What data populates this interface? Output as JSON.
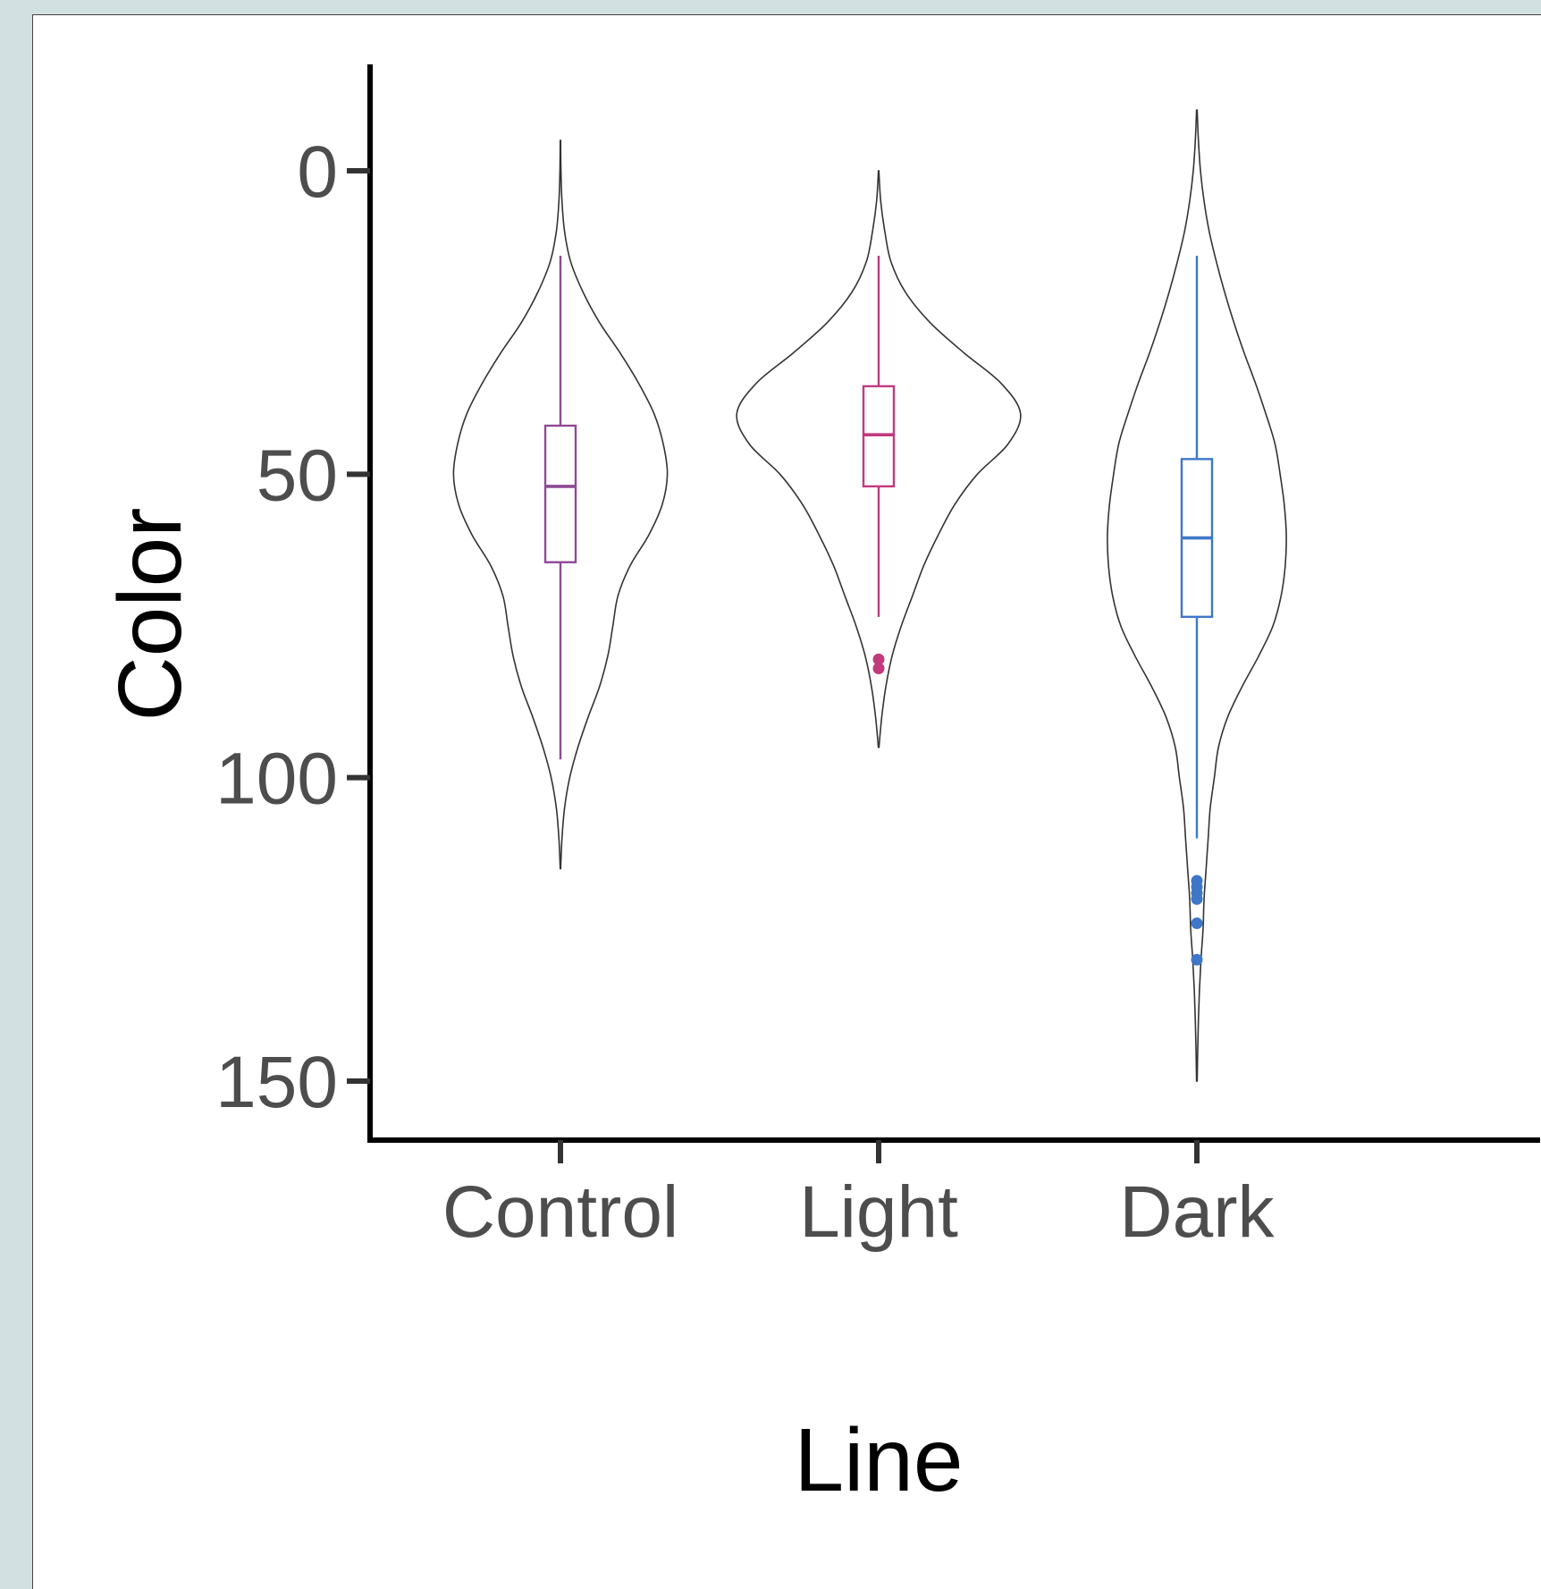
{
  "chart_data": {
    "type": "violin",
    "xlabel": "Line",
    "ylabel": "Color",
    "y_axis_reversed": true,
    "ylim": [
      -17,
      160
    ],
    "yticks": [
      0,
      50,
      100,
      150
    ],
    "grid": false,
    "legend": "none",
    "categories": [
      "Control",
      "Light",
      "Dark"
    ],
    "series": [
      {
        "category": "Control",
        "color": "#8e4a95",
        "box": {
          "whisker_low": 14,
          "q1": 42,
          "median": 52,
          "q3": 64.5,
          "whisker_high": 97
        },
        "outliers": [],
        "violin": {
          "y": [
            -5,
            0,
            5,
            10,
            15,
            20,
            25,
            30,
            35,
            40,
            45,
            50,
            55,
            60,
            65,
            70,
            75,
            80,
            85,
            90,
            95,
            100,
            105,
            110,
            115
          ],
          "width": [
            0.2,
            0.5,
            1.5,
            4,
            10,
            22,
            38,
            58,
            76,
            91,
            100,
            104,
            99,
            86,
            68,
            56,
            51,
            46,
            38,
            27,
            17,
            9,
            4,
            1.5,
            0.2
          ]
        }
      },
      {
        "category": "Light",
        "color": "#c13a7d",
        "box": {
          "whisker_low": 14,
          "q1": 35.5,
          "median": 43.5,
          "q3": 52,
          "whisker_high": 73.5
        },
        "outliers": [
          80.5,
          82
        ],
        "violin": {
          "y": [
            0,
            5,
            10,
            15,
            20,
            25,
            30,
            35,
            40,
            45,
            50,
            55,
            60,
            65,
            70,
            75,
            80,
            85,
            90,
            95
          ],
          "width": [
            0.2,
            2,
            6,
            12,
            26,
            50,
            83,
            119,
            138,
            126,
            96,
            74,
            58,
            44,
            33,
            22,
            13,
            7,
            3,
            0.3
          ]
        }
      },
      {
        "category": "Dark",
        "color": "#3e76c8",
        "box": {
          "whisker_low": 14,
          "q1": 47.5,
          "median": 60.5,
          "q3": 73.5,
          "whisker_high": 110
        },
        "outliers": [
          117,
          118,
          119,
          120,
          124,
          130
        ],
        "violin": {
          "y": [
            -10,
            -5,
            0,
            5,
            10,
            15,
            20,
            25,
            30,
            35,
            40,
            45,
            50,
            55,
            60,
            65,
            70,
            75,
            80,
            85,
            90,
            95,
            100,
            105,
            110,
            115,
            120,
            125,
            130,
            135,
            140,
            145,
            150
          ],
          "width": [
            0.3,
            1.5,
            3.5,
            7,
            12,
            19,
            27,
            36,
            46,
            57,
            67,
            76,
            81,
            85,
            87,
            86,
            82,
            74,
            60,
            44,
            30,
            21,
            17,
            13,
            11,
            9,
            7,
            6,
            4,
            2.5,
            1.5,
            0.8,
            0.3
          ]
        }
      }
    ]
  }
}
